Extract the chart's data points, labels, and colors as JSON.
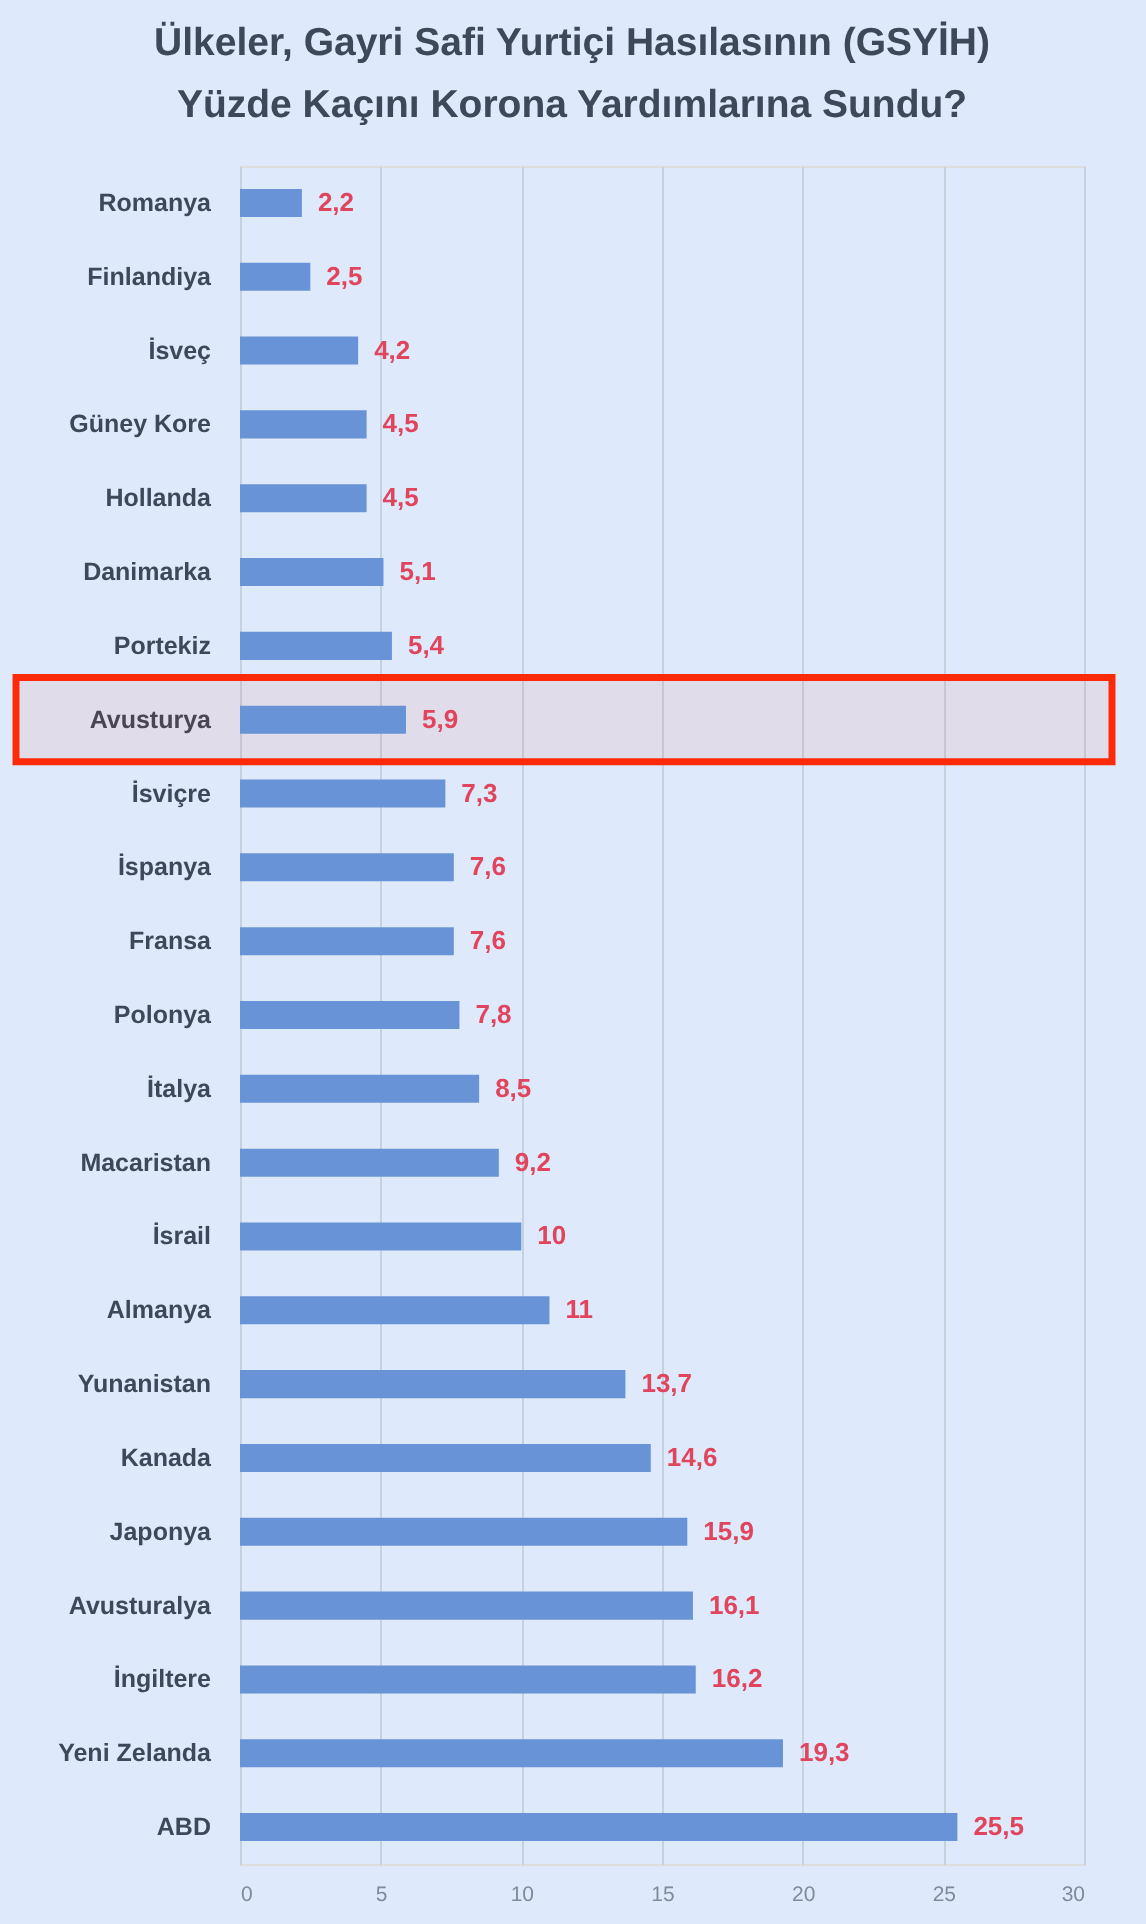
{
  "chart_data": {
    "type": "bar",
    "orientation": "horizontal",
    "title": "Ülkeler, Gayri Safi Yurtiçi Hasılasının (GSYİH)\nYüzde Kaçını Korona Yardımlarına Sundu?",
    "categories": [
      "Romanya",
      "Finlandiya",
      "İsveç",
      "Güney Kore",
      "Hollanda",
      "Danimarka",
      "Portekiz",
      "Avusturya",
      "İsviçre",
      "İspanya",
      "Fransa",
      "Polonya",
      "İtalya",
      "Macaristan",
      "İsrail",
      "Almanya",
      "Yunanistan",
      "Kanada",
      "Japonya",
      "Avusturalya",
      "İngiltere",
      "Yeni Zelanda",
      "ABD"
    ],
    "values": [
      2.2,
      2.5,
      4.2,
      4.5,
      4.5,
      5.1,
      5.4,
      5.9,
      7.3,
      7.6,
      7.6,
      7.8,
      8.5,
      9.2,
      10,
      11,
      13.7,
      14.6,
      15.9,
      16.1,
      16.2,
      19.3,
      25.5
    ],
    "value_labels": [
      "2,2",
      "2,5",
      "4,2",
      "4,5",
      "4,5",
      "5,1",
      "5,4",
      "5,9",
      "7,3",
      "7,6",
      "7,6",
      "7,8",
      "8,5",
      "9,2",
      "10",
      "11",
      "13,7",
      "14,6",
      "15,9",
      "16,1",
      "16,2",
      "19,3",
      "25,5"
    ],
    "color": "#6893d6",
    "xlim": [
      0,
      30
    ],
    "xticks": [
      0,
      5,
      10,
      15,
      20,
      25,
      30
    ],
    "grid": "x",
    "bands": [
      {
        "axis": "y",
        "from": "Avusturya",
        "to": "Avusturya",
        "color": "#fc2a08"
      }
    ]
  }
}
